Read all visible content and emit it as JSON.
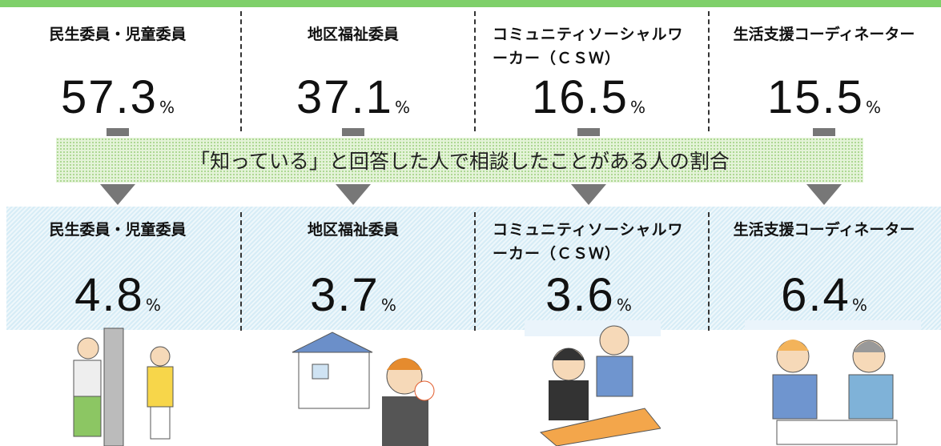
{
  "top": {
    "items": [
      {
        "label": "民生委員・児童委員",
        "value": 57.3,
        "unit": "%"
      },
      {
        "label": "地区福祉委員",
        "value": 37.1,
        "unit": "%"
      },
      {
        "label": "コミュニティソーシャルワーカー（ＣＳＷ）",
        "value": 16.5,
        "unit": "%"
      },
      {
        "label": "生活支援コーディネーター",
        "value": 15.5,
        "unit": "%"
      }
    ]
  },
  "banner": "「知っている」と回答した人で相談したことがある人の割合",
  "bottom": {
    "items": [
      {
        "label": "民生委員・児童委員",
        "value": 4.8,
        "unit": "%"
      },
      {
        "label": "地区福祉委員",
        "value": 3.7,
        "unit": "%"
      },
      {
        "label": "コミュニティソーシャルワーカー（ＣＳＷ）",
        "value": 3.6,
        "unit": "%"
      },
      {
        "label": "生活支援コーディネーター",
        "value": 6.4,
        "unit": "%"
      }
    ]
  }
}
